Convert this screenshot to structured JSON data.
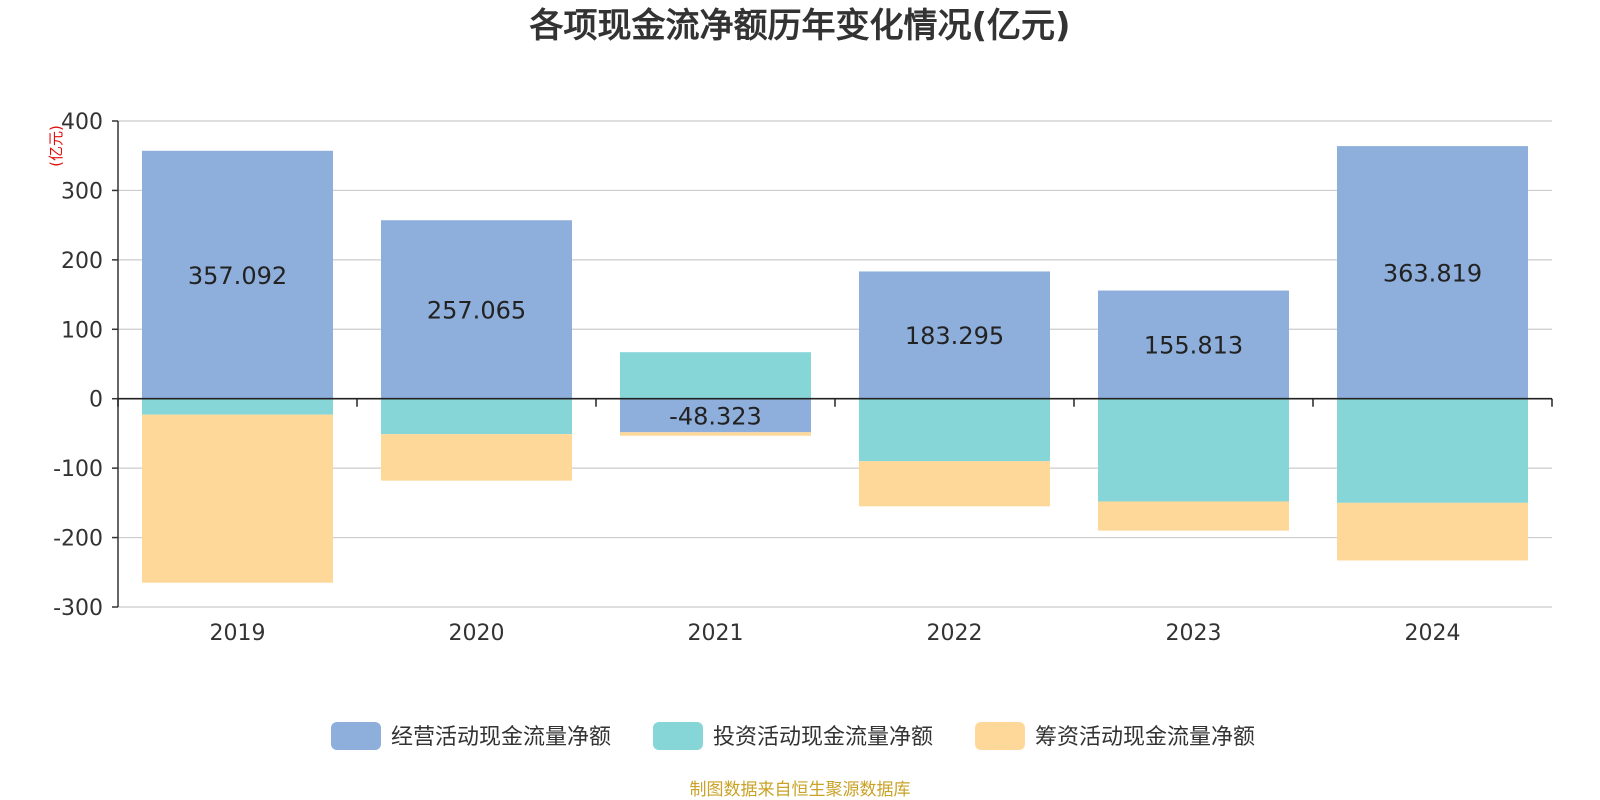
{
  "chart_data": {
    "type": "bar",
    "stacked": true,
    "title": "各项现金流净额历年变化情况(亿元)",
    "ylabel": "(亿元)",
    "xlabel": "",
    "categories": [
      "2019",
      "2020",
      "2021",
      "2022",
      "2023",
      "2024"
    ],
    "ylim": [
      -300,
      400
    ],
    "yticks": [
      400,
      300,
      200,
      100,
      0,
      -100,
      -200,
      -300
    ],
    "grid": true,
    "legend_position": "bottom",
    "series": [
      {
        "name": "经营活动现金流量净额",
        "color": "#8eaedb",
        "values": [
          357.092,
          257.065,
          -48.323,
          183.295,
          155.813,
          363.819
        ],
        "labels": [
          "357.092",
          "257.065",
          "-48.323",
          "183.295",
          "155.813",
          "363.819"
        ]
      },
      {
        "name": "投资活动现金流量净额",
        "color": "#86d5d7",
        "values": [
          -23,
          -51,
          67,
          -90,
          -148,
          -150
        ]
      },
      {
        "name": "筹资活动现金流量净额",
        "color": "#fdd899",
        "values": [
          -242,
          -67,
          -5,
          -65,
          -42,
          -83
        ]
      }
    ]
  },
  "source_note": "制图数据来自恒生聚源数据库"
}
